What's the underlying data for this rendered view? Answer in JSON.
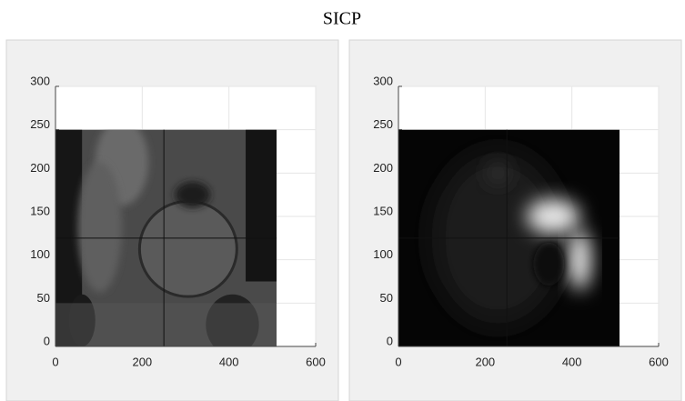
{
  "title": "SICP",
  "chart_data": [
    {
      "type": "image",
      "xlim": [
        0,
        600
      ],
      "ylim": [
        0,
        300
      ],
      "xticks": [
        0,
        200,
        400,
        600
      ],
      "yticks": [
        0,
        50,
        100,
        150,
        200,
        250,
        300
      ],
      "grid": true,
      "extent": [
        0,
        510,
        0,
        250
      ],
      "crosshair": [
        250,
        125
      ],
      "colormap": "ct"
    },
    {
      "type": "image",
      "xlim": [
        0,
        600
      ],
      "ylim": [
        0,
        300
      ],
      "xticks": [
        0,
        200,
        400,
        600
      ],
      "yticks": [
        0,
        50,
        100,
        150,
        200,
        250,
        300
      ],
      "grid": true,
      "extent": [
        0,
        510,
        0,
        250
      ],
      "crosshair": [
        250,
        125
      ],
      "colormap": "heat"
    }
  ]
}
